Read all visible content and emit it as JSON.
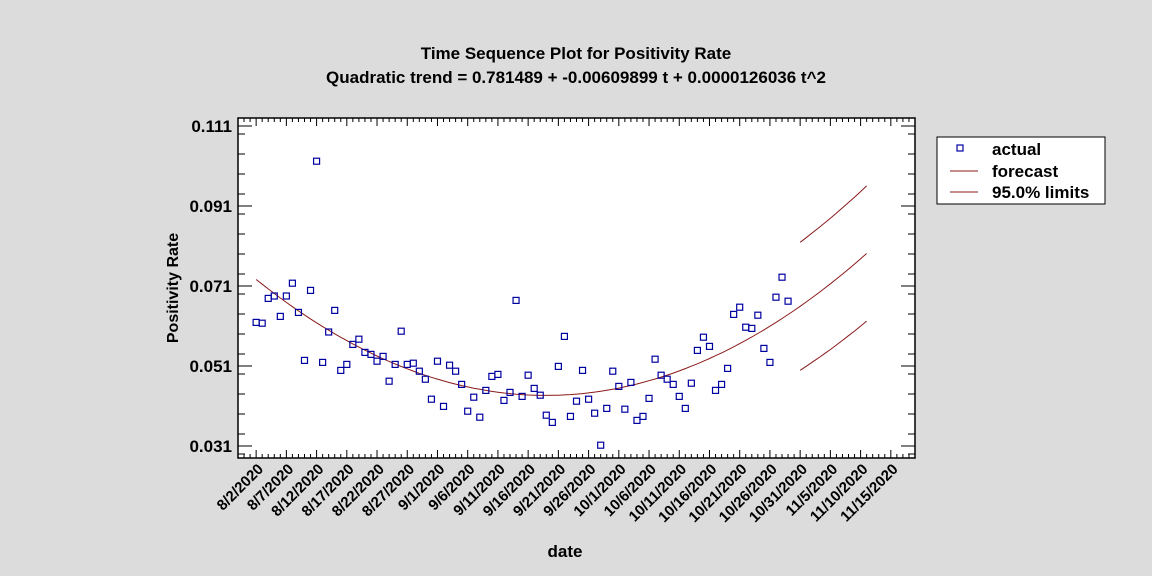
{
  "chart_data": {
    "type": "scatter",
    "title": "Time Sequence Plot for Positivity Rate",
    "subtitle": "Quadratic trend = 0.781489 + -0.00609899 t  + 0.0000126036 t^2",
    "xlabel": "date",
    "ylabel": "Positivity Rate",
    "ylim": [
      0.028,
      0.113
    ],
    "yticks": [
      "0.031",
      "0.051",
      "0.071",
      "0.091",
      "0.111"
    ],
    "xlim_days": [
      -3,
      109
    ],
    "xticks": [
      "8/2/2020",
      "8/7/2020",
      "8/12/2020",
      "8/17/2020",
      "8/22/2020",
      "8/27/2020",
      "9/1/2020",
      "9/6/2020",
      "9/11/2020",
      "9/16/2020",
      "9/21/2020",
      "9/26/2020",
      "10/1/2020",
      "10/6/2020",
      "10/11/2020",
      "10/16/2020",
      "10/21/2020",
      "10/26/2020",
      "10/31/2020",
      "11/5/2020",
      "11/10/2020",
      "11/15/2020"
    ],
    "xtick_step_days": 5,
    "legend": {
      "position": "right",
      "entries": [
        "actual",
        "forecast",
        "95.0% limits"
      ]
    },
    "colors": {
      "actual": "#0000a0",
      "forecast": "#8b1a1a",
      "limits": "#8b1a1a",
      "plot_bg": "#ffffff"
    },
    "actual": [
      0.0619,
      0.0617,
      0.0679,
      0.0685,
      0.0634,
      0.0685,
      0.0717,
      0.0644,
      0.0524,
      0.0699,
      0.1022,
      0.0519,
      0.0595,
      0.0649,
      0.0499,
      0.0514,
      0.0564,
      0.0577,
      0.0544,
      0.0539,
      0.0522,
      0.0534,
      0.0472,
      0.0514,
      0.0597,
      0.0514,
      0.0517,
      0.0497,
      0.0477,
      0.0427,
      0.0522,
      0.0409,
      0.0512,
      0.0497,
      0.0464,
      0.0397,
      0.0432,
      0.0382,
      0.0449,
      0.0484,
      0.0489,
      0.0424,
      0.0444,
      0.0674,
      0.0434,
      0.0487,
      0.0454,
      0.0437,
      0.0387,
      0.0369,
      0.0509,
      0.0584,
      0.0384,
      0.0422,
      0.0499,
      0.0427,
      0.0392,
      0.0312,
      0.0404,
      0.0497,
      0.0459,
      0.0402,
      0.0469,
      0.0374,
      0.0384,
      0.0429,
      0.0527,
      0.0487,
      0.0477,
      0.0464,
      0.0434,
      0.0404,
      0.0467,
      0.0549,
      0.0582,
      0.0559,
      0.0449,
      0.0464,
      0.0504,
      0.0639,
      0.0657,
      0.0607,
      0.0604,
      0.0637,
      0.0554,
      0.0519,
      0.0682,
      0.0732,
      0.0672
    ],
    "trend": {
      "a": 0.781489,
      "b": -0.00609899,
      "c": 1.26036e-05,
      "t_first_day": 194,
      "days": [
        0,
        101
      ]
    },
    "limits": {
      "days": [
        90,
        101
      ],
      "half_width": [
        0.016,
        0.0169
      ]
    }
  }
}
